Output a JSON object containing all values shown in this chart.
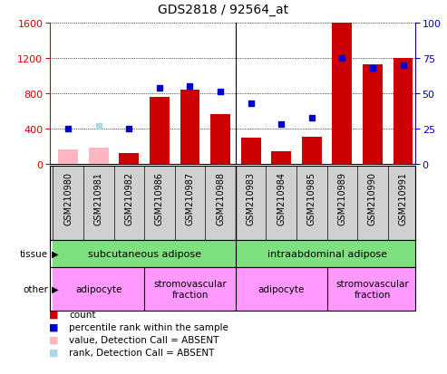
{
  "title": "GDS2818 / 92564_at",
  "samples": [
    "GSM210980",
    "GSM210981",
    "GSM210982",
    "GSM210986",
    "GSM210987",
    "GSM210988",
    "GSM210983",
    "GSM210984",
    "GSM210985",
    "GSM210989",
    "GSM210990",
    "GSM210991"
  ],
  "count_values": [
    null,
    null,
    120,
    760,
    840,
    560,
    300,
    140,
    310,
    1600,
    1130,
    1200
  ],
  "count_absent": [
    160,
    185,
    null,
    null,
    null,
    null,
    null,
    null,
    null,
    null,
    null,
    null
  ],
  "rank_values": [
    25,
    null,
    25,
    54,
    55,
    51,
    43,
    28,
    33,
    75,
    68,
    70
  ],
  "rank_absent": [
    null,
    27,
    null,
    null,
    null,
    null,
    null,
    null,
    null,
    null,
    null,
    null
  ],
  "ylim_left": [
    0,
    1600
  ],
  "ylim_right": [
    0,
    100
  ],
  "yticks_left": [
    0,
    400,
    800,
    1200,
    1600
  ],
  "yticks_right": [
    0,
    25,
    50,
    75,
    100
  ],
  "tissue_groups": [
    {
      "label": "subcutaneous adipose",
      "start": 0,
      "end": 6,
      "color": "#7EE07E"
    },
    {
      "label": "intraabdominal adipose",
      "start": 6,
      "end": 12,
      "color": "#7EE07E"
    }
  ],
  "other_groups": [
    {
      "label": "adipocyte",
      "start": 0,
      "end": 3,
      "color": "#FF99FF"
    },
    {
      "label": "stromovascular\nfraction",
      "start": 3,
      "end": 6,
      "color": "#FF99FF"
    },
    {
      "label": "adipocyte",
      "start": 6,
      "end": 9,
      "color": "#FF99FF"
    },
    {
      "label": "stromovascular\nfraction",
      "start": 9,
      "end": 12,
      "color": "#FF99FF"
    }
  ],
  "bar_color": "#CC0000",
  "bar_absent_color": "#FFB6C1",
  "scatter_color": "#0000CC",
  "scatter_absent_color": "#ADD8E6",
  "bg_color": "#FFFFFF",
  "tick_color_left": "#CC0000",
  "tick_color_right": "#0000BB",
  "xlim": [
    -0.6,
    11.4
  ],
  "divider_col": 5.5
}
